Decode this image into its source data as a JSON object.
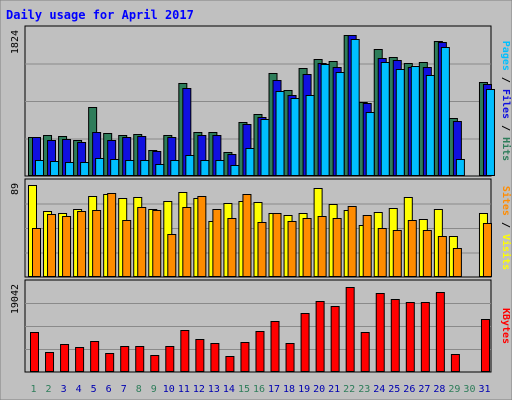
{
  "chart_data": {
    "type": "bar",
    "title": "Daily usage for April 2017",
    "categories": [
      "1",
      "2",
      "3",
      "4",
      "5",
      "6",
      "7",
      "8",
      "9",
      "10",
      "11",
      "12",
      "13",
      "14",
      "15",
      "16",
      "17",
      "18",
      "19",
      "20",
      "21",
      "22",
      "23",
      "24",
      "25",
      "26",
      "27",
      "28",
      "29",
      "30",
      "31"
    ],
    "weekend_days": [
      1,
      2,
      8,
      9,
      15,
      16,
      22,
      23,
      29,
      30
    ],
    "panels": [
      {
        "id": "hits",
        "max_label": "1824",
        "ymax": 1824,
        "series": [
          {
            "name": "Hits",
            "color": "#2e7d5a",
            "values": [
              490,
              520,
              510,
              460,
              880,
              540,
              520,
              530,
              330,
              520,
              1180,
              560,
              560,
              300,
              680,
              780,
              1300,
              1090,
              1370,
              1480,
              1460,
              1790,
              940,
              1610,
              1510,
              1430,
              1440,
              1710,
              730,
              0,
              1190
            ]
          },
          {
            "name": "Files",
            "color": "#1010e0",
            "values": [
              490,
              460,
              470,
              430,
              560,
              460,
              490,
              510,
              320,
              500,
              1120,
              520,
              520,
              280,
              660,
              750,
              1210,
              1030,
              1290,
              1430,
              1380,
              1790,
              920,
              1500,
              1470,
              1380,
              1380,
              1700,
              700,
              0,
              1160
            ]
          },
          {
            "name": "Pages",
            "color": "#00bfff",
            "values": [
              200,
              190,
              180,
              180,
              230,
              220,
              200,
              200,
              150,
              200,
              260,
              200,
              200,
              140,
              360,
              720,
              1080,
              990,
              1020,
              1420,
              1320,
              1740,
              810,
              1440,
              1360,
              1390,
              1280,
              1640,
              210,
              0,
              1100
            ]
          }
        ]
      },
      {
        "id": "visits",
        "max_label": "89",
        "ymax": 89,
        "series": [
          {
            "name": "Visits",
            "color": "#ffff00",
            "values": [
              89,
              64,
              62,
              66,
              78,
              80,
              76,
              77,
              66,
              74,
              82,
              76,
              54,
              72,
              74,
              73,
              62,
              60,
              62,
              86,
              71,
              65,
              50,
              63,
              67,
              77,
              56,
              66,
              40,
              0,
              62
            ]
          },
          {
            "name": "Sites",
            "color": "#ff8c00",
            "values": [
              47,
              61,
              59,
              64,
              65,
              81,
              55,
              68,
              65,
              42,
              68,
              78,
              66,
              57,
              80,
              53,
              62,
              54,
              57,
              59,
              57,
              69,
              60,
              47,
              45,
              55,
              45,
              40,
              28,
              0,
              52
            ]
          }
        ]
      },
      {
        "id": "kbytes",
        "max_label": "19042",
        "ymax": 19042,
        "series": [
          {
            "name": "KBytes",
            "color": "#ff0000",
            "values": [
              8900,
              4400,
              6100,
              5600,
              6800,
              4300,
              5700,
              5800,
              3800,
              5800,
              9400,
              7400,
              6400,
              3600,
              6700,
              9000,
              11300,
              6500,
              13000,
              15800,
              14600,
              18900,
              8800,
              17500,
              16200,
              15400,
              15500,
              17700,
              4000,
              0,
              11700
            ]
          }
        ]
      }
    ],
    "right_labels": {
      "top": [
        {
          "text": "Pages",
          "color": "#00bfff"
        },
        {
          "text": " / ",
          "color": "#000000"
        },
        {
          "text": "Files",
          "color": "#1010e0"
        },
        {
          "text": " / ",
          "color": "#000000"
        },
        {
          "text": "Hits",
          "color": "#2e7d5a"
        }
      ],
      "middle": [
        {
          "text": "Sites",
          "color": "#ff8c00"
        },
        {
          "text": " / ",
          "color": "#000000"
        },
        {
          "text": "Visits",
          "color": "#ffff00"
        }
      ],
      "bottom": [
        {
          "text": "KBytes",
          "color": "#ff0000"
        }
      ]
    },
    "colors": {
      "title": "#0000ff",
      "frame_bg": "#c0c0c0",
      "plot_bg": "#c0c0c0",
      "grid": "#8a8a8a",
      "weekday_label": "#0000b0",
      "weekend_label": "#2e7d5a"
    }
  }
}
